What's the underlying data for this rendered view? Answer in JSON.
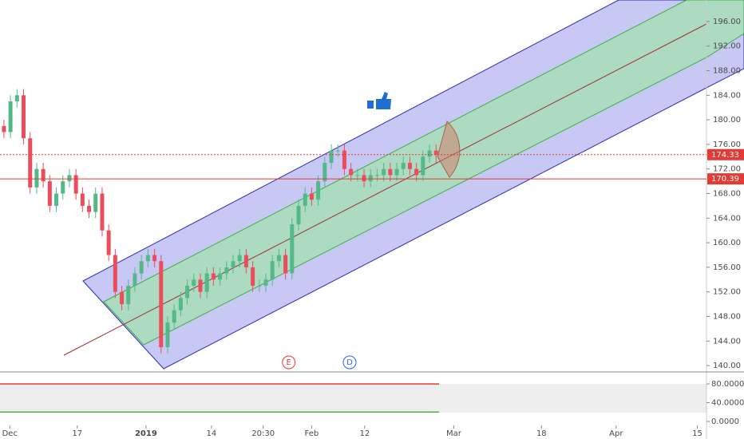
{
  "chart_data": {
    "type": "candlestick",
    "xlim": [
      -0.6,
      107.3
    ],
    "xticks": [
      {
        "value": 0.9,
        "label": "Dec"
      },
      {
        "value": 11.2,
        "label": "17"
      },
      {
        "value": 21.7,
        "label": "2019"
      },
      {
        "value": 31.7,
        "label": "14"
      },
      {
        "value": 39.6,
        "label": "20:30"
      },
      {
        "value": 47,
        "label": "Feb"
      },
      {
        "value": 55.1,
        "label": "12"
      },
      {
        "value": 68.7,
        "label": "Mar"
      },
      {
        "value": 82.1,
        "label": "18"
      },
      {
        "value": 93.5,
        "label": "Apr"
      },
      {
        "value": 105.9,
        "label": "15"
      }
    ],
    "ylim": [
      139.1,
      199.5
    ],
    "yticks": [
      {
        "value": 140,
        "label": "140.00"
      },
      {
        "value": 144,
        "label": "144.00"
      },
      {
        "value": 148,
        "label": "148.00"
      },
      {
        "value": 152,
        "label": "152.00"
      },
      {
        "value": 156,
        "label": "156.00"
      },
      {
        "value": 160,
        "label": "160.00"
      },
      {
        "value": 164,
        "label": "164.00"
      },
      {
        "value": 168,
        "label": "168.00"
      },
      {
        "value": 172,
        "label": "172.00"
      },
      {
        "value": 176,
        "label": "176.00"
      },
      {
        "value": 180,
        "label": "180.00"
      },
      {
        "value": 184,
        "label": "184.00"
      },
      {
        "value": 188,
        "label": "188.00"
      },
      {
        "value": 192,
        "label": "192.00"
      },
      {
        "value": 196,
        "label": "196.00"
      }
    ],
    "up_color": "#53b987",
    "down_color": "#eb4d5c",
    "open": [
      179,
      178,
      183,
      184,
      177,
      169,
      172,
      170,
      166,
      168,
      170,
      171,
      168,
      166,
      165,
      168,
      162,
      158,
      152,
      150,
      153,
      155,
      157,
      158,
      157,
      143,
      147,
      149,
      151,
      153,
      154,
      152,
      155,
      154,
      155,
      156,
      157,
      158,
      156,
      153,
      153,
      154,
      157,
      158,
      155,
      163,
      166,
      168,
      167,
      170,
      173,
      175,
      175,
      172,
      171,
      171,
      170,
      171,
      171,
      172,
      171,
      172,
      173,
      172,
      171,
      174,
      175
    ],
    "high": [
      180,
      184,
      185,
      185,
      178,
      173,
      173,
      171,
      169,
      171,
      172,
      172,
      169,
      167,
      169,
      169,
      163,
      159,
      153,
      154,
      156,
      158,
      159,
      159,
      158,
      148,
      150,
      152,
      154,
      155,
      155,
      156,
      156,
      156,
      157,
      158,
      159,
      159,
      157,
      154,
      155,
      158,
      159,
      159,
      164,
      167,
      169,
      169,
      171,
      174,
      176,
      176,
      176,
      173,
      172,
      172,
      172,
      172,
      173,
      173,
      173,
      174,
      174,
      173,
      175,
      176,
      176
    ],
    "low": [
      177,
      177,
      182,
      176,
      168,
      168,
      169,
      165,
      165,
      167,
      169,
      167,
      165,
      164,
      164,
      161,
      157,
      151,
      149,
      149,
      152,
      154,
      156,
      156,
      142,
      142,
      146,
      148,
      150,
      152,
      151,
      151,
      153,
      153,
      154,
      155,
      156,
      155,
      152,
      152,
      152,
      153,
      156,
      154,
      154,
      162,
      165,
      166,
      166,
      169,
      172,
      174,
      171,
      170,
      170,
      169,
      169,
      170,
      170,
      170,
      170,
      171,
      171,
      170,
      170,
      173,
      173
    ],
    "close": [
      178,
      183,
      184,
      177,
      169,
      172,
      170,
      166,
      168,
      170,
      171,
      168,
      166,
      165,
      168,
      162,
      158,
      152,
      150,
      153,
      155,
      157,
      158,
      157,
      143,
      147,
      149,
      151,
      153,
      154,
      152,
      155,
      154,
      155,
      156,
      157,
      158,
      156,
      153,
      153,
      154,
      157,
      158,
      155,
      163,
      166,
      168,
      167,
      170,
      173,
      175,
      175,
      172,
      171,
      171,
      170,
      171,
      171,
      172,
      171,
      172,
      173,
      172,
      171,
      174,
      175,
      174.33
    ],
    "price_lines": [
      {
        "value": 174.33,
        "color": "#e53935",
        "style": "dashed"
      },
      {
        "value": 170.39,
        "color": "#e53935",
        "style": "solid"
      }
    ],
    "events": [
      {
        "label": "E",
        "x": 43.5,
        "color": "#e53935"
      },
      {
        "label": "D",
        "x": 52.8,
        "color": "#2962ff"
      }
    ],
    "indicator": {
      "ylim": [
        -20.4,
        103.8
      ],
      "yticks": [
        {
          "value": 80,
          "label": "80.0000"
        },
        {
          "value": 40,
          "label": "40.0000"
        },
        {
          "value": 0,
          "label": "0.0000"
        }
      ],
      "levels": [
        {
          "value": 80,
          "color": "#e53935"
        },
        {
          "value": 20,
          "color": "#4caf50"
        }
      ]
    }
  }
}
